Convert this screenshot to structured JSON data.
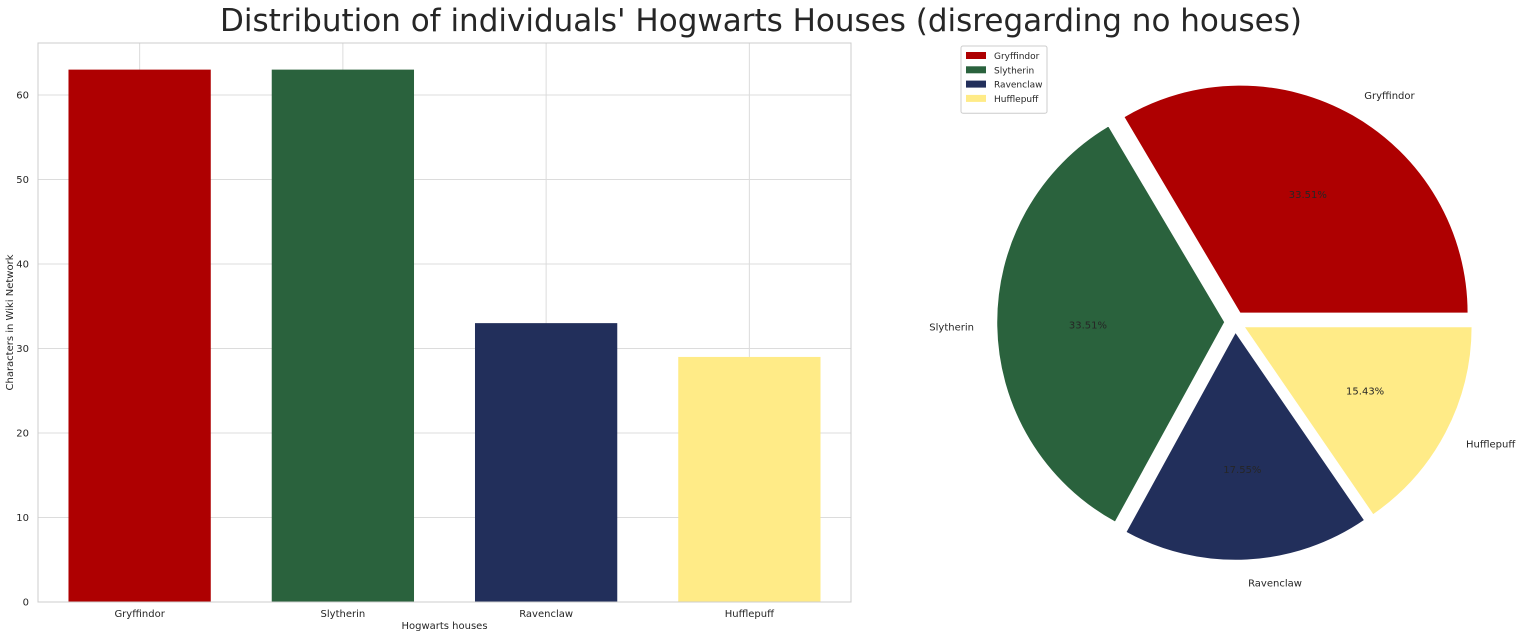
{
  "title": "Distribution of individuals' Hogwarts Houses (disregarding no houses)",
  "chart_data": [
    {
      "type": "bar",
      "categories": [
        "Gryffindor",
        "Slytherin",
        "Ravenclaw",
        "Hufflepuff"
      ],
      "values": [
        63,
        63,
        33,
        29
      ],
      "colors": [
        "#ae0001",
        "#2a623d",
        "#222f5b",
        "#ffeb87"
      ],
      "xlabel": "Hogwarts houses",
      "ylabel": "Characters in Wiki Network",
      "ylim": [
        0,
        66.15
      ],
      "yticks": [
        0,
        10,
        20,
        30,
        40,
        50,
        60
      ],
      "grid": true
    },
    {
      "type": "pie",
      "labels": [
        "Gryffindor",
        "Slytherin",
        "Ravenclaw",
        "Hufflepuff"
      ],
      "values": [
        63,
        63,
        33,
        29
      ],
      "percent_labels": [
        "33.51%",
        "33.51%",
        "17.55%",
        "15.43%"
      ],
      "colors": [
        "#ae0001",
        "#2a623d",
        "#222f5b",
        "#ffeb87"
      ],
      "legend": {
        "placement": "top-left",
        "entries": [
          "Gryffindor",
          "Slytherin",
          "Ravenclaw",
          "Hufflepuff"
        ]
      }
    }
  ]
}
